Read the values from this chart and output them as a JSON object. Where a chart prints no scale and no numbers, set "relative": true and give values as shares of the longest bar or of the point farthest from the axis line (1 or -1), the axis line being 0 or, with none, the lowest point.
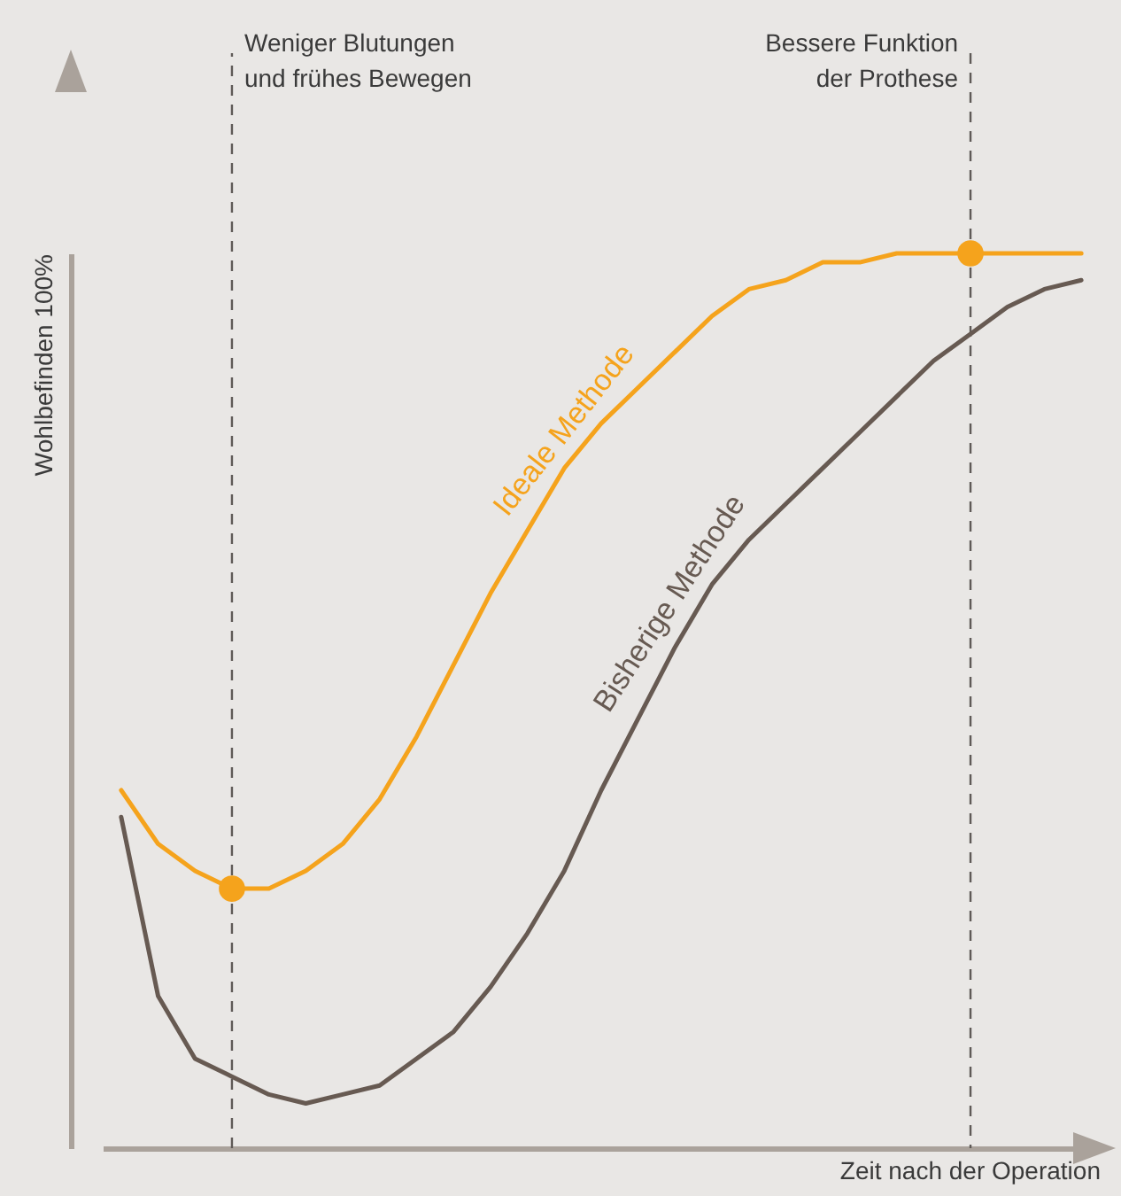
{
  "chart_data": {
    "type": "line",
    "relative": true,
    "xlabel": "Zeit nach der Operation",
    "ylabel": "Wohlbefinden 100%",
    "marker": "none",
    "line_style": "solid",
    "categories": [
      null,
      null,
      null,
      null,
      null,
      null,
      null,
      null,
      null,
      null,
      null,
      null,
      null,
      null,
      null,
      null,
      null,
      null,
      null,
      null,
      null,
      null,
      null,
      null,
      null,
      null,
      null
    ],
    "series": [
      {
        "name": "Ideale Methode",
        "color": "#f5a31c",
        "values": [
          0.4,
          0.34,
          0.31,
          0.29,
          0.29,
          0.31,
          0.34,
          0.39,
          0.46,
          0.54,
          0.62,
          0.69,
          0.76,
          0.81,
          0.85,
          0.89,
          0.93,
          0.96,
          0.97,
          0.99,
          0.99,
          1.0,
          1.0,
          1.0,
          1.0,
          1.0,
          1.0
        ]
      },
      {
        "name": "Bisherige Methode",
        "color": "#675a52",
        "values": [
          0.37,
          0.17,
          0.1,
          0.08,
          0.06,
          0.05,
          0.06,
          0.07,
          0.1,
          0.13,
          0.18,
          0.24,
          0.31,
          0.4,
          0.48,
          0.56,
          0.63,
          0.68,
          0.72,
          0.76,
          0.8,
          0.84,
          0.88,
          0.91,
          0.94,
          0.96,
          0.97
        ]
      }
    ],
    "annotations": [
      "Weniger Blutungen\nund frühes Bewegen",
      "Bessere Funktion\nder Prothese"
    ]
  }
}
